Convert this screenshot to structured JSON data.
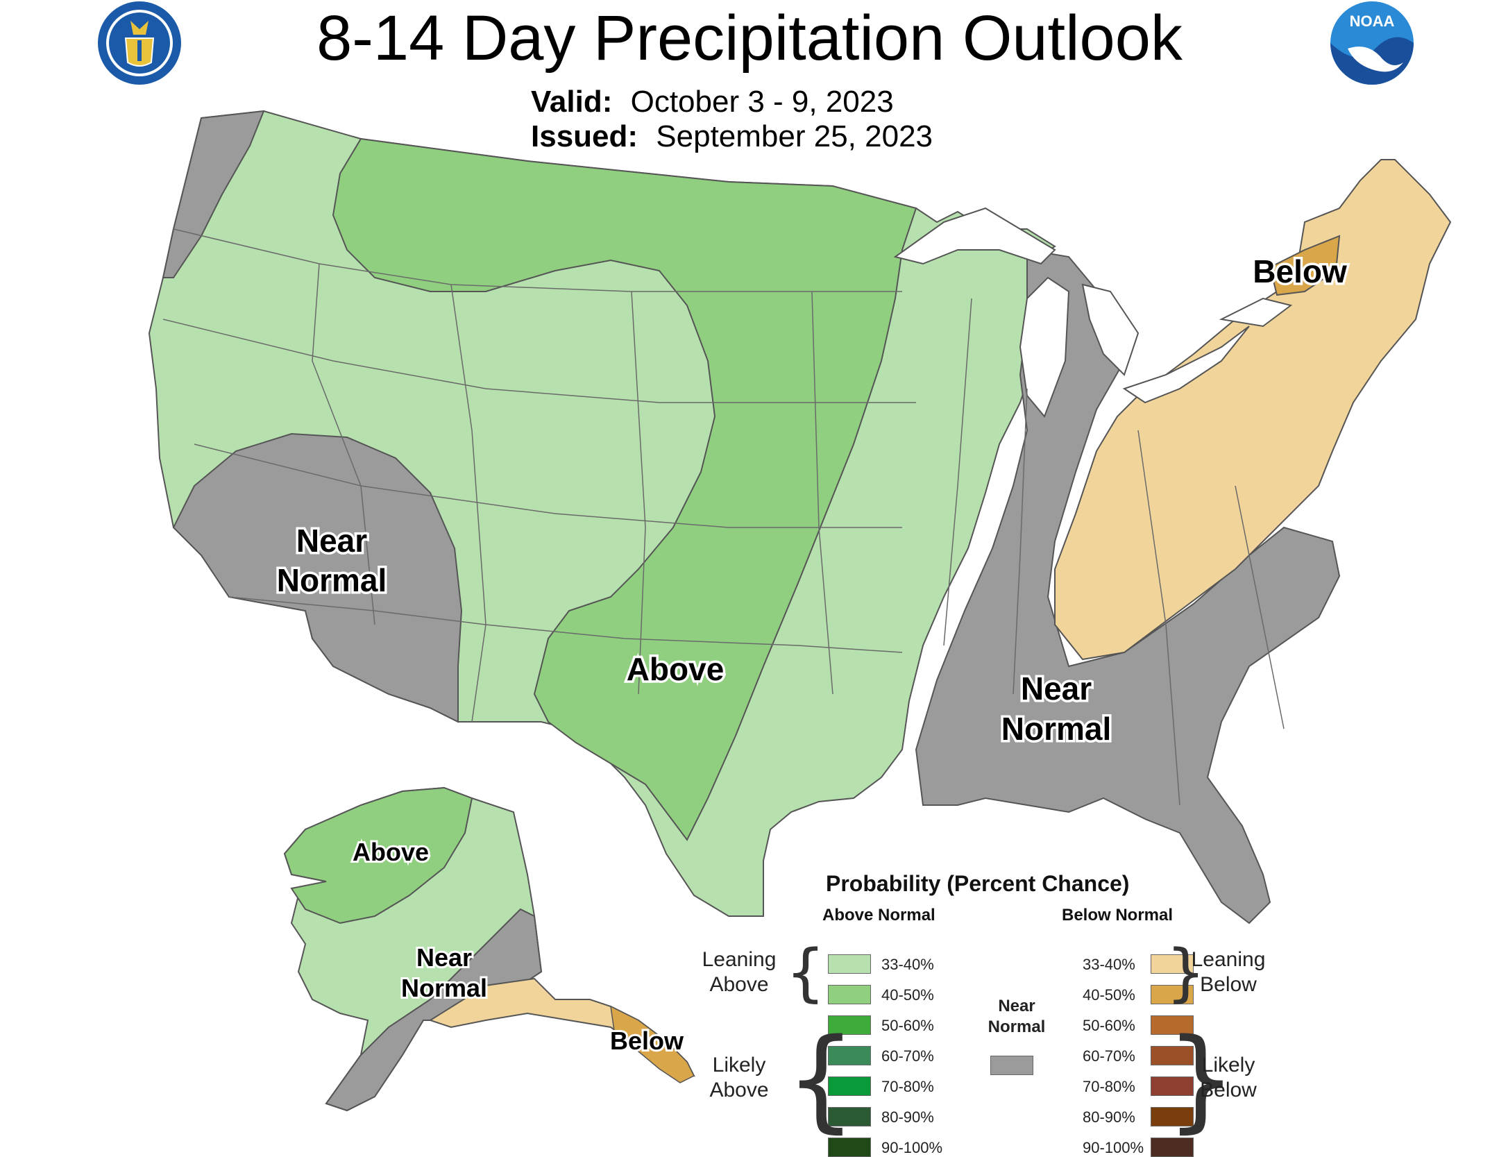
{
  "title": "8-14 Day Precipitation Outlook",
  "valid_label": "Valid:",
  "valid_value": "October 3 - 9, 2023",
  "issued_label": "Issued:",
  "issued_value": "September 25, 2023",
  "logos": {
    "left": "doc-seal-icon",
    "right": "noaa-logo-icon",
    "noaa_text": "NOAA"
  },
  "colors": {
    "a33": "#b6e0ae",
    "a40": "#90cf7f",
    "a50": "#3eac38",
    "a60": "#3a8a5a",
    "a70": "#0a9a3a",
    "a80": "#2b5a35",
    "a90": "#1f4a18",
    "near": "#9b9b9b",
    "b33": "#f1d49a",
    "b40": "#d9a64a",
    "b50": "#b66a2c",
    "b60": "#9b5027",
    "b70": "#8f3f32",
    "b80": "#7a3e0c",
    "b90": "#4e2c22"
  },
  "map_labels": {
    "conus_near_west": [
      "Near",
      "Normal"
    ],
    "conus_above": "Above",
    "conus_near_east": [
      "Near",
      "Normal"
    ],
    "conus_below": "Below",
    "ak_above": "Above",
    "ak_near": [
      "Near",
      "Normal"
    ],
    "ak_below": "Below"
  },
  "legend": {
    "title": "Probability (Percent Chance)",
    "above_header": "Above Normal",
    "below_header": "Below Normal",
    "near_header": [
      "Near",
      "Normal"
    ],
    "above_items": [
      {
        "label": "33-40%",
        "color": "#b6e0ae"
      },
      {
        "label": "40-50%",
        "color": "#90cf7f"
      },
      {
        "label": "50-60%",
        "color": "#3eac38"
      },
      {
        "label": "60-70%",
        "color": "#3a8a5a"
      },
      {
        "label": "70-80%",
        "color": "#0a9a3a"
      },
      {
        "label": "80-90%",
        "color": "#2b5a35"
      },
      {
        "label": "90-100%",
        "color": "#1f4a18"
      }
    ],
    "below_items": [
      {
        "label": "33-40%",
        "color": "#f1d49a"
      },
      {
        "label": "40-50%",
        "color": "#d9a64a"
      },
      {
        "label": "50-60%",
        "color": "#b66a2c"
      },
      {
        "label": "60-70%",
        "color": "#9b5027"
      },
      {
        "label": "70-80%",
        "color": "#8f3f32"
      },
      {
        "label": "80-90%",
        "color": "#7a3e0c"
      },
      {
        "label": "90-100%",
        "color": "#4e2c22"
      }
    ],
    "leaning_above": [
      "Leaning",
      "Above"
    ],
    "likely_above": [
      "Likely",
      "Above"
    ],
    "leaning_below": [
      "Leaning",
      "Below"
    ],
    "likely_below": [
      "Likely",
      "Below"
    ]
  }
}
